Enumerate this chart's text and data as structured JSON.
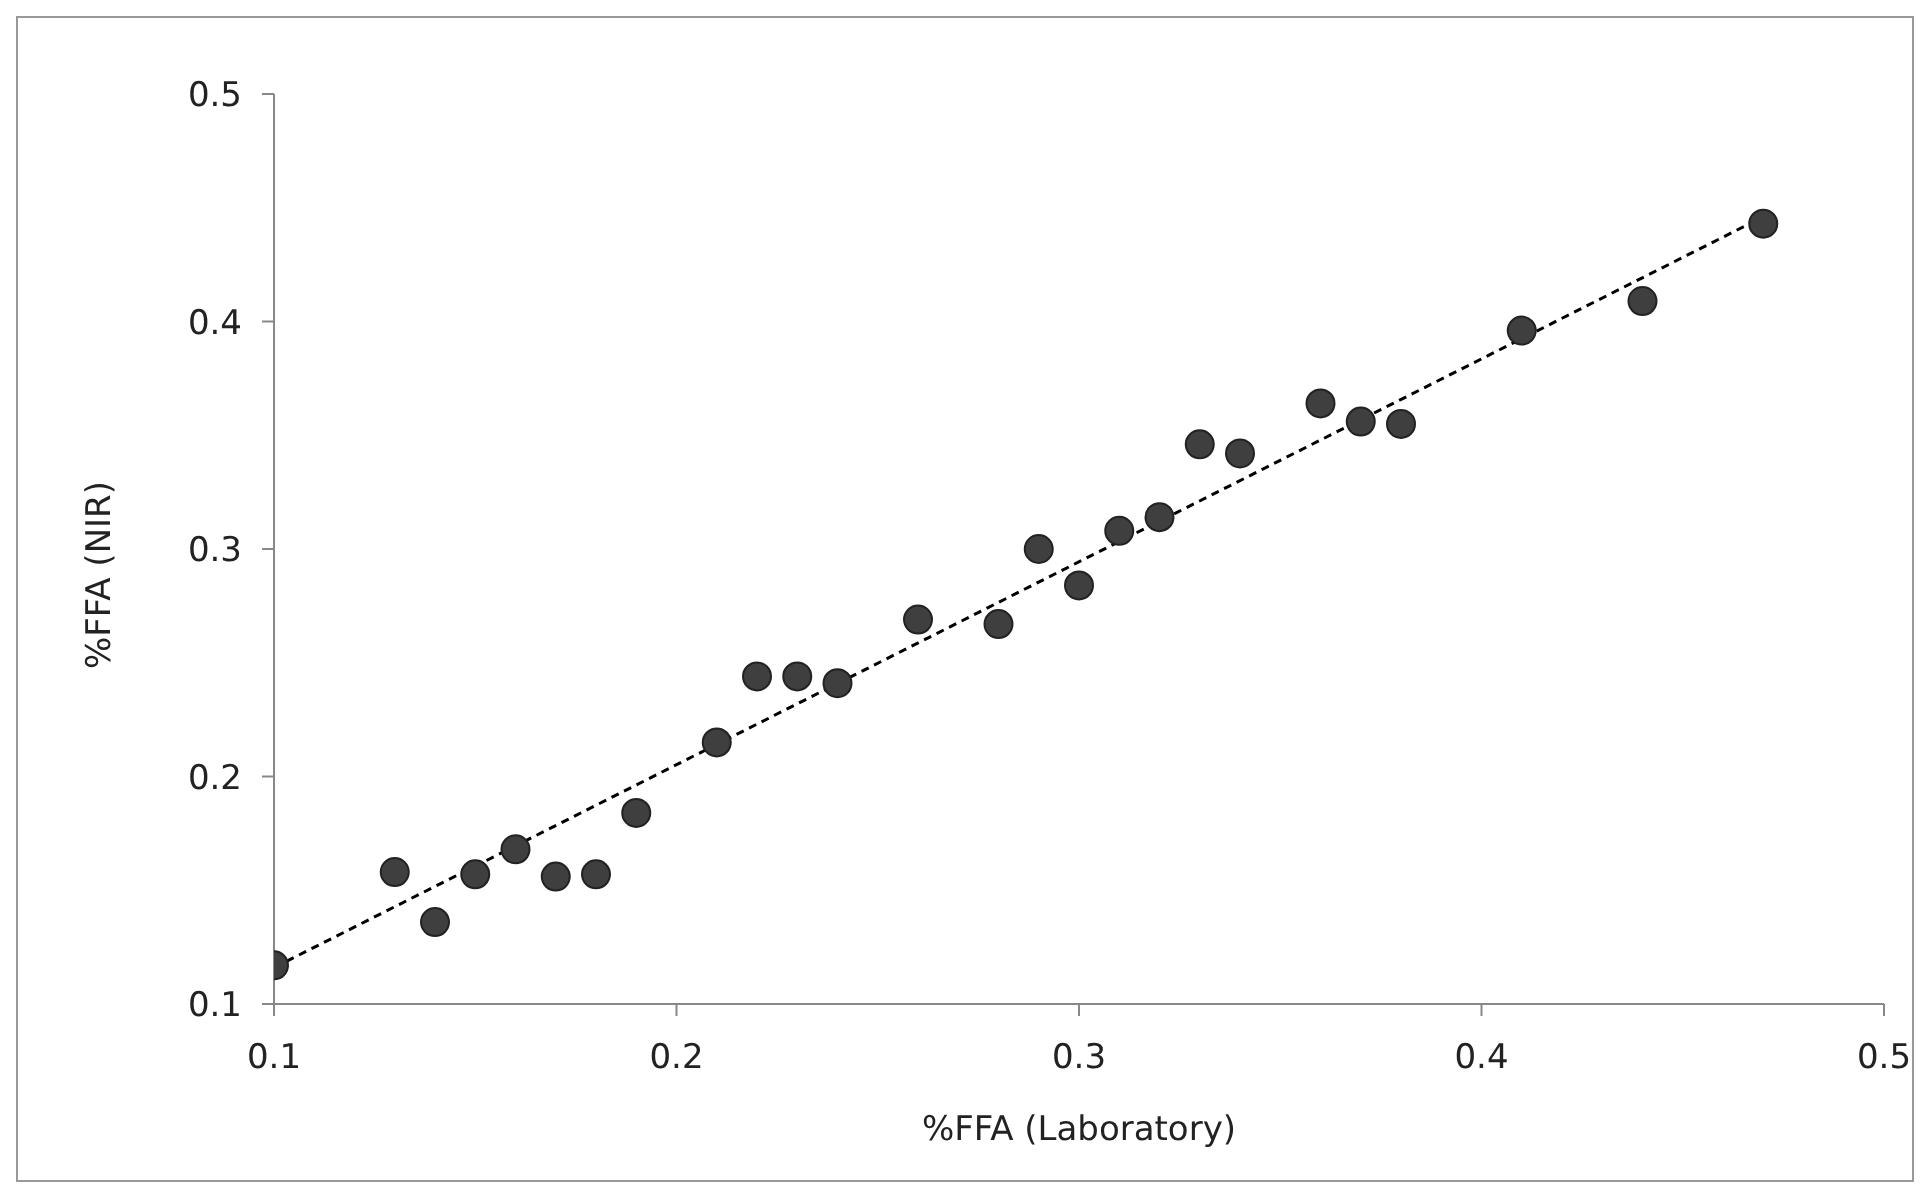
{
  "chart_data": {
    "type": "scatter",
    "xlabel": "%FFA (Laboratory)",
    "ylabel": "%FFA (NIR)",
    "xlim": [
      0.1,
      0.5
    ],
    "xticks": [
      0.1,
      0.2,
      0.3,
      0.4,
      0.5
    ],
    "ylim": [
      0.1,
      0.5
    ],
    "yticks": [
      0.1,
      0.2,
      0.3,
      0.4,
      0.5
    ],
    "grid": false,
    "legend": false,
    "marker": "circle",
    "x": [
      0.1,
      0.13,
      0.14,
      0.15,
      0.16,
      0.17,
      0.18,
      0.19,
      0.21,
      0.22,
      0.23,
      0.24,
      0.26,
      0.28,
      0.29,
      0.3,
      0.31,
      0.32,
      0.33,
      0.34,
      0.36,
      0.37,
      0.38,
      0.41,
      0.44,
      0.47
    ],
    "series": [
      {
        "color": "#3f3f3f",
        "values": [
          0.117,
          0.158,
          0.136,
          0.157,
          0.168,
          0.156,
          0.157,
          0.184,
          0.215,
          0.244,
          0.244,
          0.241,
          0.269,
          0.267,
          0.3,
          0.284,
          0.308,
          0.314,
          0.346,
          0.342,
          0.364,
          0.356,
          0.355,
          0.396,
          0.409,
          0.443
        ]
      },
      {
        "type": "line",
        "color": "#000000",
        "line_style": "dashed",
        "marker": "none",
        "x": [
          0.1,
          0.47
        ],
        "values": [
          0.116,
          0.446
        ]
      }
    ]
  }
}
